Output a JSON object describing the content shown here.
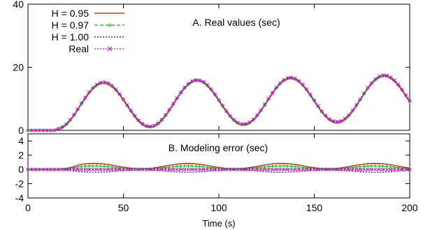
{
  "chart_data": [
    {
      "type": "line",
      "panel": "top",
      "title": "A. Real values (sec)",
      "xlim": [
        0,
        200
      ],
      "ylim": [
        0,
        40
      ],
      "xticks": [
        0,
        50,
        100,
        150,
        200
      ],
      "yticks": [
        0,
        20,
        40
      ],
      "xlabel": "",
      "ylabel": "",
      "grid": false,
      "legend": "top-left",
      "series": [
        {
          "name": "H = 0.95",
          "color": "#e00000",
          "style": "solid",
          "marker": "none",
          "kind": "real",
          "offset": -0.4
        },
        {
          "name": "H = 0.97",
          "color": "#00c000",
          "style": "dashed",
          "marker": "plus",
          "kind": "real",
          "offset": -0.2
        },
        {
          "name": "H = 1.00",
          "color": "#0000e0",
          "style": "dotted",
          "marker": "none",
          "kind": "real",
          "offset": 0.1
        },
        {
          "name": "Real",
          "color": "#e000e0",
          "style": "dotted",
          "marker": "cross",
          "kind": "real",
          "offset": 0.0
        }
      ]
    },
    {
      "type": "line",
      "panel": "bottom",
      "title": "B. Modeling error (sec)",
      "xlim": [
        0,
        200
      ],
      "ylim": [
        -4,
        5
      ],
      "xticks": [
        0,
        50,
        100,
        150,
        200
      ],
      "yticks": [
        -4,
        -2,
        0,
        2,
        4
      ],
      "xlabel": "Time (s)",
      "ylabel": "",
      "grid": false,
      "series": [
        {
          "name": "H = 0.95",
          "color": "#e00000",
          "style": "solid",
          "marker": "none",
          "kind": "error",
          "amp": 0.85,
          "phase": 0
        },
        {
          "name": "H = 0.97",
          "color": "#00c000",
          "style": "dashed",
          "marker": "plus",
          "kind": "error",
          "amp": 0.5,
          "phase": 0
        },
        {
          "name": "H = 1.00",
          "color": "#0000e0",
          "style": "dotted",
          "marker": "none",
          "kind": "error",
          "amp": -0.4,
          "phase": 0
        },
        {
          "name": "Real",
          "color": "#e000e0",
          "style": "dotted",
          "marker": "cross",
          "kind": "zero"
        }
      ]
    }
  ]
}
